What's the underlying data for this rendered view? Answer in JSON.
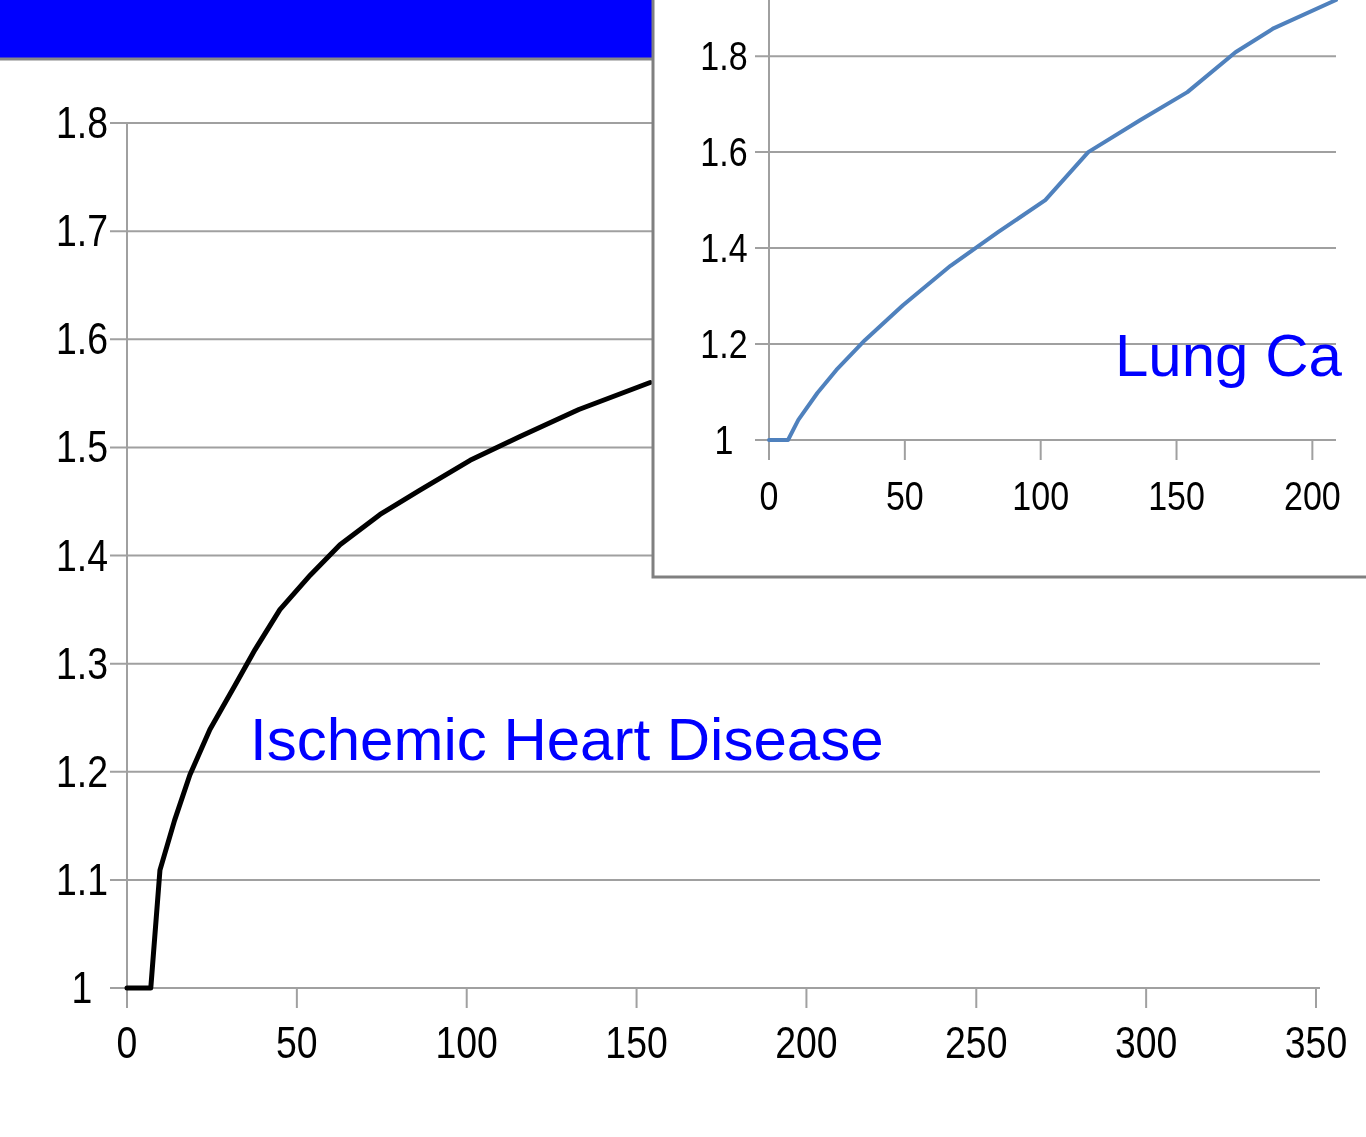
{
  "chart_data": [
    {
      "type": "line",
      "annotations": [
        "Ischemic Heart Disease"
      ],
      "xlim": [
        0,
        350
      ],
      "xticks": [
        0,
        50,
        100,
        150,
        200,
        250,
        300,
        350
      ],
      "ylim": [
        1,
        1.8
      ],
      "yticks": [
        {
          "value": 1,
          "label": "1"
        },
        1.1,
        1.2,
        1.3,
        1.4,
        1.5,
        1.6,
        1.7,
        1.8
      ],
      "grid": "y",
      "series": [
        {
          "color": "#000000",
          "x": [
            0,
            7,
            9.7,
            14,
            18.5,
            24.4,
            31.8,
            37.7,
            45,
            54,
            62.7,
            74.5,
            86,
            101,
            115.7,
            133,
            154
          ],
          "values": [
            1,
            1,
            1.109,
            1.155,
            1.197,
            1.239,
            1.28,
            1.313,
            1.35,
            1.382,
            1.41,
            1.438,
            1.46,
            1.488,
            1.51,
            1.535,
            1.56
          ]
        }
      ]
    },
    {
      "type": "line",
      "annotations": [
        "Lung Ca"
      ],
      "xlim": [
        0,
        208.7
      ],
      "xticks": [
        0,
        50,
        100,
        150,
        200
      ],
      "ylim": [
        1,
        1.917
      ],
      "yticks": [
        {
          "value": 1,
          "label": "1"
        },
        1.2,
        1.4,
        1.6,
        1.8
      ],
      "grid": "y",
      "series": [
        {
          "color": "#4f81bd",
          "x": [
            0,
            7,
            10.8,
            17.8,
            24.8,
            35.3,
            49.3,
            66.8,
            84.3,
            101.7,
            117.5,
            136.7,
            154,
            171.7,
            185.7,
            208.7
          ],
          "values": [
            1,
            1,
            1.042,
            1.098,
            1.146,
            1.208,
            1.281,
            1.363,
            1.433,
            1.5,
            1.6,
            1.667,
            1.725,
            1.808,
            1.858,
            1.917
          ]
        }
      ]
    }
  ]
}
